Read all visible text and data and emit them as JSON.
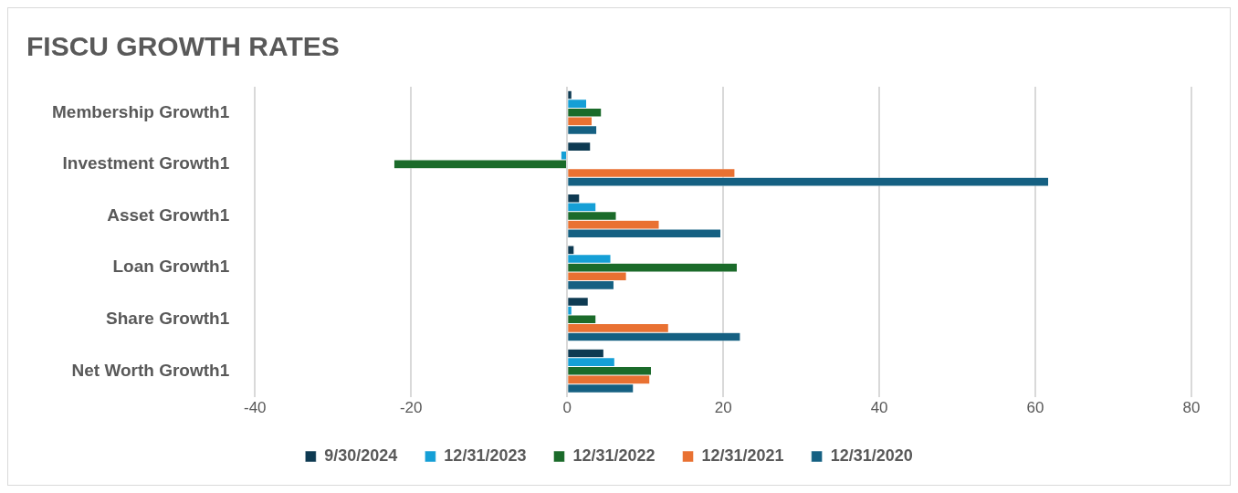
{
  "chart_data": {
    "type": "bar",
    "orientation": "horizontal",
    "title": "FISCU GROWTH RATES",
    "categories": [
      "Membership Growth1",
      "Investment Growth1",
      "Asset Growth1",
      "Loan Growth1",
      "Share Growth1",
      "Net Worth Growth1"
    ],
    "series": [
      {
        "name": "9/30/2024",
        "color": "#0e3a52",
        "values": [
          0.6,
          3.0,
          1.6,
          0.9,
          2.7,
          4.7
        ]
      },
      {
        "name": "12/31/2023",
        "color": "#159fd6",
        "values": [
          2.5,
          -0.8,
          3.7,
          5.6,
          0.6,
          6.1
        ]
      },
      {
        "name": "12/31/2022",
        "color": "#1b6b2a",
        "values": [
          4.4,
          -22.2,
          6.3,
          21.8,
          3.7,
          10.8
        ]
      },
      {
        "name": "12/31/2021",
        "color": "#e97132",
        "values": [
          3.2,
          21.5,
          11.8,
          7.6,
          13.0,
          10.6
        ]
      },
      {
        "name": "12/31/2020",
        "color": "#156082",
        "values": [
          3.8,
          61.7,
          19.7,
          6.0,
          22.2,
          8.5
        ]
      }
    ],
    "xlim": [
      -40,
      80
    ],
    "xticks": [
      -40,
      -20,
      0,
      20,
      40,
      60,
      80
    ],
    "grid": "x",
    "legend": "bottom"
  }
}
